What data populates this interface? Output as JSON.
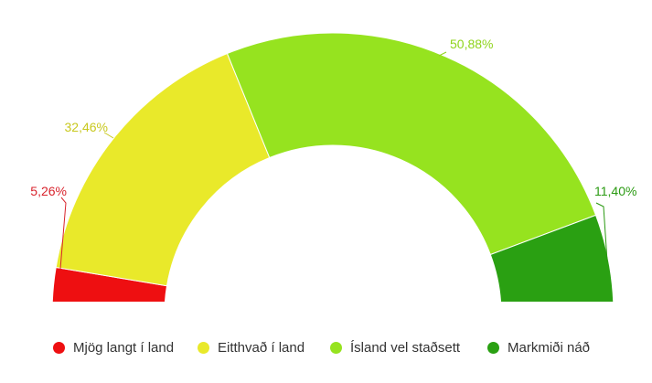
{
  "chart_data": {
    "type": "pie",
    "variant": "semi-donut",
    "slices": [
      {
        "name": "Mjög langt í land",
        "value": 5.26,
        "label": "5,26%",
        "color": "#ee0f11"
      },
      {
        "name": "Eitthvað í land",
        "value": 32.46,
        "label": "32,46%",
        "color": "#e9e92a"
      },
      {
        "name": "Ísland vel staðsett",
        "value": 50.88,
        "label": "50,88%",
        "color": "#96e31f"
      },
      {
        "name": "Markmiði náð",
        "value": 11.4,
        "label": "11,40%",
        "color": "#2aa012"
      }
    ],
    "label_colors": [
      "#d8232c",
      "#c8c81e",
      "#8fd41c",
      "#2a9a12"
    ],
    "legend_position": "bottom"
  }
}
